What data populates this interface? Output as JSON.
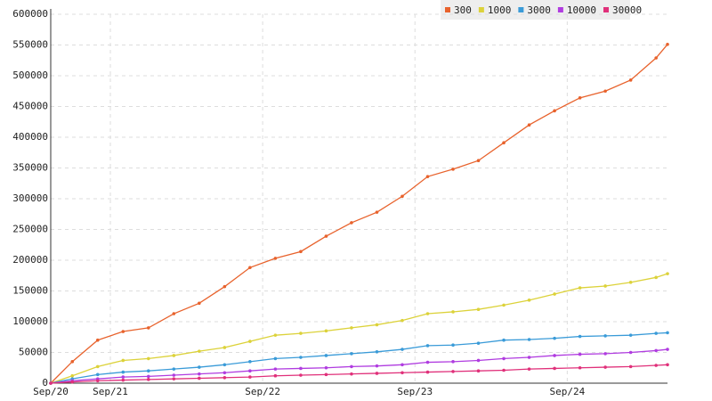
{
  "chart_data": {
    "type": "line",
    "x": [
      7.3,
      9,
      11,
      13,
      15,
      17,
      19,
      21,
      23,
      25,
      27,
      29,
      31,
      33,
      35,
      37,
      39,
      41,
      43,
      45,
      47,
      49,
      51,
      53,
      55,
      55.9
    ],
    "xlim": [
      7.3,
      55.9
    ],
    "xticks": [
      {
        "value": 7.3,
        "label": "Sep/20"
      },
      {
        "value": 12,
        "label": "Sep/21"
      },
      {
        "value": 24,
        "label": "Sep/22"
      },
      {
        "value": 36,
        "label": "Sep/23"
      },
      {
        "value": 48,
        "label": "Sep/24"
      }
    ],
    "ylim": [
      0,
      600000
    ],
    "yticks": [
      0,
      50000,
      100000,
      150000,
      200000,
      250000,
      300000,
      350000,
      400000,
      450000,
      500000,
      550000,
      600000
    ],
    "grid": true,
    "legend": "top",
    "series": [
      {
        "name": "300",
        "color": "#e8622c",
        "values": [
          0,
          35000,
          70000,
          84000,
          90000,
          113000,
          130000,
          157000,
          188000,
          203000,
          214000,
          239000,
          261000,
          278000,
          304000,
          336000,
          348000,
          362000,
          391000,
          420000,
          443000,
          464000,
          475000,
          493000,
          529000,
          551000
        ]
      },
      {
        "name": "1000",
        "color": "#dcd23a",
        "values": [
          0,
          12000,
          27000,
          37000,
          40000,
          45000,
          52000,
          58000,
          68000,
          78000,
          81000,
          85000,
          90000,
          95000,
          102000,
          113000,
          116000,
          120000,
          127000,
          135000,
          145000,
          155000,
          158000,
          164000,
          172000,
          178000
        ]
      },
      {
        "name": "3000",
        "color": "#3a9bd8",
        "values": [
          0,
          7000,
          14000,
          18000,
          20000,
          23000,
          26000,
          30000,
          35000,
          40000,
          42000,
          45000,
          48000,
          51000,
          55000,
          61000,
          62000,
          65000,
          70000,
          71000,
          73000,
          76000,
          77000,
          78000,
          81000,
          82000
        ]
      },
      {
        "name": "10000",
        "color": "#b03ce0",
        "values": [
          0,
          4000,
          7000,
          10000,
          11000,
          13000,
          15000,
          17000,
          20000,
          23000,
          24000,
          25000,
          27000,
          28000,
          30000,
          34000,
          35000,
          37000,
          40000,
          42000,
          45000,
          47000,
          48000,
          50000,
          53000,
          55000
        ]
      },
      {
        "name": "30000",
        "color": "#e0307a",
        "values": [
          0,
          2000,
          4000,
          5000,
          6000,
          7000,
          8000,
          9000,
          10000,
          12000,
          13000,
          14000,
          15000,
          16000,
          17000,
          18000,
          19000,
          20000,
          21000,
          23000,
          24000,
          25000,
          26000,
          27000,
          29000,
          30000
        ]
      }
    ]
  }
}
